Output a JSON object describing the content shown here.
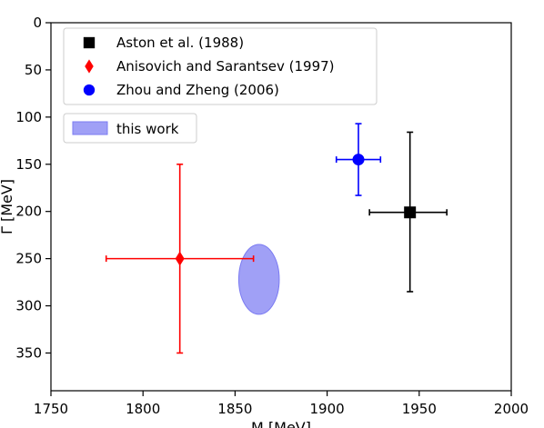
{
  "chart_data": {
    "type": "scatter",
    "title": "",
    "xlabel": "M [MeV]",
    "ylabel": "Γ [MeV]",
    "xlim": [
      1750,
      2000
    ],
    "ylim": [
      390,
      0
    ],
    "y_inverted": true,
    "x_ticks": [
      1750,
      1800,
      1850,
      1900,
      1950,
      2000
    ],
    "y_ticks": [
      0,
      50,
      100,
      150,
      200,
      250,
      300,
      350
    ],
    "grid": false,
    "legend_position": "top-left",
    "series": [
      {
        "name": "Aston et al. (1988)",
        "marker": "square",
        "color": "#000000",
        "x": 1945,
        "y": 201,
        "x_err": [
          22,
          20
        ],
        "y_err": [
          85,
          84
        ]
      },
      {
        "name": "Anisovich and Sarantsev (1997)",
        "marker": "diamond",
        "color": "#ff0000",
        "x": 1820,
        "y": 250,
        "x_err": [
          40,
          40
        ],
        "y_err": [
          100,
          100
        ]
      },
      {
        "name": "Zhou and Zheng (2006)",
        "marker": "circle",
        "color": "#0000ff",
        "x": 1917,
        "y": 145,
        "x_err": [
          12,
          12
        ],
        "y_err": [
          38,
          38
        ]
      }
    ],
    "region": {
      "name": "this work",
      "shape": "ellipse",
      "color": "#7b7bf2",
      "center_x": 1863,
      "center_y": 272,
      "half_width_x": 11,
      "half_height_y": 37
    }
  }
}
